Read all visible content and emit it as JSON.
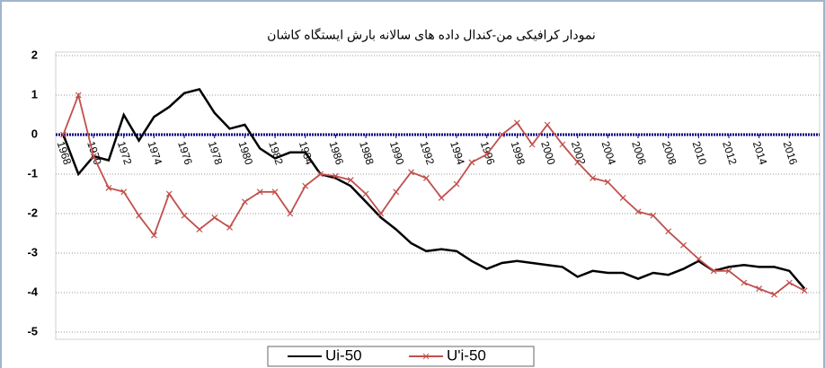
{
  "chart_data": {
    "type": "line",
    "title": "نمودار کرافیکی من-کندال داده های سالانه بارش  ایستگاه کاشان",
    "x": [
      1968,
      1969,
      1970,
      1971,
      1972,
      1973,
      1974,
      1975,
      1976,
      1977,
      1978,
      1979,
      1980,
      1981,
      1982,
      1983,
      1984,
      1985,
      1986,
      1987,
      1988,
      1989,
      1990,
      1991,
      1992,
      1993,
      1994,
      1995,
      1996,
      1997,
      1998,
      1999,
      2000,
      2001,
      2002,
      2003,
      2004,
      2005,
      2006,
      2007,
      2008,
      2009,
      2010,
      2011,
      2012,
      2013,
      2014,
      2015,
      2016,
      2017
    ],
    "series": [
      {
        "name": "Ui-50",
        "color": "#000000",
        "marker": "none",
        "values": [
          0,
          -1.0,
          -0.55,
          -0.65,
          0.5,
          -0.15,
          0.45,
          0.7,
          1.05,
          1.15,
          0.55,
          0.15,
          0.25,
          -0.35,
          -0.6,
          -0.45,
          -0.45,
          -1.0,
          -1.1,
          -1.3,
          -1.7,
          -2.1,
          -2.4,
          -2.75,
          -2.95,
          -2.9,
          -2.95,
          -3.2,
          -3.4,
          -3.25,
          -3.2,
          -3.25,
          -3.3,
          -3.35,
          -3.6,
          -3.45,
          -3.5,
          -3.5,
          -3.65,
          -3.5,
          -3.55,
          -3.4,
          -3.2,
          -3.45,
          -3.35,
          -3.3,
          -3.35,
          -3.35,
          -3.45,
          -3.9
        ]
      },
      {
        "name": "U'i-50",
        "color": "#c0504d",
        "marker": "x",
        "values": [
          0,
          1.0,
          -0.55,
          -1.35,
          -1.45,
          -2.05,
          -2.55,
          -1.5,
          -2.05,
          -2.4,
          -2.1,
          -2.35,
          -1.7,
          -1.45,
          -1.45,
          -2.0,
          -1.3,
          -1.0,
          -1.05,
          -1.15,
          -1.5,
          -2.0,
          -1.45,
          -0.95,
          -1.1,
          -1.6,
          -1.25,
          -0.7,
          -0.5,
          0,
          0.3,
          -0.25,
          0.25,
          -0.25,
          -0.7,
          -1.1,
          -1.2,
          -1.6,
          -1.95,
          -2.05,
          -2.45,
          -2.8,
          -3.15,
          -3.45,
          -3.45,
          -3.75,
          -3.9,
          -4.05,
          -3.75,
          -3.95
        ]
      }
    ],
    "xlim": [
      1967.5,
      2018
    ],
    "xticks": [
      1968,
      1970,
      1972,
      1974,
      1976,
      1978,
      1980,
      1982,
      1984,
      1986,
      1988,
      1990,
      1992,
      1994,
      1996,
      1998,
      2000,
      2002,
      2004,
      2006,
      2008,
      2010,
      2012,
      2014,
      2016
    ],
    "ylim": [
      -5,
      2
    ],
    "yticks": [
      -5,
      -4,
      -3,
      -2,
      -1,
      0,
      1,
      2
    ],
    "grid": true,
    "reference_line": {
      "value": 0,
      "color": "#00008b"
    },
    "legend": "bottom"
  }
}
